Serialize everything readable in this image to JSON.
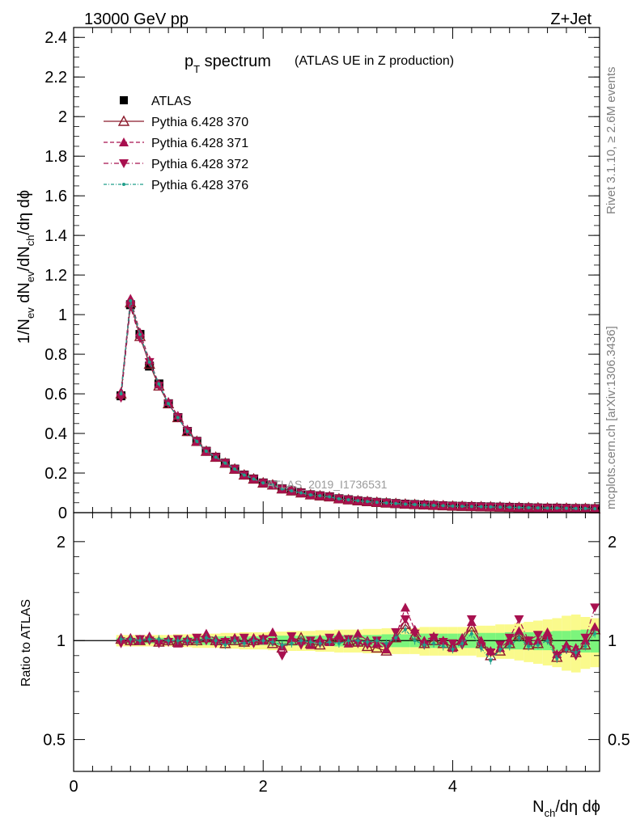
{
  "header": {
    "left": "13000 GeV pp",
    "right": "Z+Jet"
  },
  "plot_title": {
    "main": "p",
    "main_sub": "T",
    "main_rest": " spectrum",
    "paren": "(ATLAS UE in Z production)"
  },
  "side_text": {
    "rivet": "Rivet 3.1.10, ≥ 2.6M events",
    "site": "mcplots.cern.ch [arXiv:1306.3436]"
  },
  "watermark": "ATLAS_2019_I1736531",
  "colors": {
    "data": "#000000",
    "mc370": "#8b1a2b",
    "mc371": "#a8104f",
    "mc372": "#a8104f",
    "mc376": "#1f9e8a",
    "band_inner": "#7cf57c",
    "band_outer": "#fafa8c"
  },
  "chart_data": [
    {
      "type": "line",
      "panel": "main",
      "ylabel": "1/N_ev dN_ev/dN_ch/dη dϕ",
      "ylim": [
        0,
        2.45
      ],
      "yticks": [
        "0",
        "0.2",
        "0.4",
        "0.6",
        "0.8",
        "1",
        "1.2",
        "1.4",
        "1.6",
        "1.8",
        "2",
        "2.2",
        "2.4"
      ],
      "ytick_values": [
        0,
        0.2,
        0.4,
        0.6,
        0.8,
        1,
        1.2,
        1.4,
        1.6,
        1.8,
        2,
        2.2,
        2.4
      ],
      "xlim": [
        0,
        5.55
      ],
      "legend_position": "top-left",
      "x": [
        0.5,
        0.6,
        0.7,
        0.8,
        0.9,
        1.0,
        1.1,
        1.2,
        1.3,
        1.4,
        1.5,
        1.6,
        1.7,
        1.8,
        1.9,
        2.0,
        2.1,
        2.2,
        2.3,
        2.4,
        2.5,
        2.6,
        2.7,
        2.8,
        2.9,
        3.0,
        3.1,
        3.2,
        3.3,
        3.4,
        3.5,
        3.6,
        3.7,
        3.8,
        3.9,
        4.0,
        4.1,
        4.2,
        4.3,
        4.4,
        4.5,
        4.6,
        4.7,
        4.8,
        4.9,
        5.0,
        5.1,
        5.2,
        5.3,
        5.4,
        5.5
      ],
      "series": [
        {
          "name": "ATLAS",
          "marker": "square",
          "values": [
            0.59,
            1.05,
            0.9,
            0.74,
            0.65,
            0.55,
            0.48,
            0.41,
            0.36,
            0.31,
            0.28,
            0.25,
            0.22,
            0.19,
            0.17,
            0.15,
            0.14,
            0.12,
            0.11,
            0.1,
            0.09,
            0.085,
            0.08,
            0.07,
            0.065,
            0.06,
            0.056,
            0.052,
            0.049,
            0.046,
            0.043,
            0.041,
            0.039,
            0.037,
            0.035,
            0.033,
            0.032,
            0.031,
            0.03,
            0.029,
            0.028,
            0.027,
            0.026,
            0.025,
            0.024,
            0.023,
            0.023,
            0.022,
            0.021,
            0.021,
            0.02
          ]
        },
        {
          "name": "Pythia 6.428 370",
          "marker": "open-triangle",
          "values": [
            0.6,
            1.06,
            0.89,
            0.75,
            0.64,
            0.55,
            0.48,
            0.41,
            0.36,
            0.31,
            0.28,
            0.25,
            0.22,
            0.19,
            0.17,
            0.15,
            0.14,
            0.12,
            0.11,
            0.1,
            0.09,
            0.085,
            0.08,
            0.07,
            0.065,
            0.06,
            0.056,
            0.052,
            0.049,
            0.046,
            0.043,
            0.041,
            0.039,
            0.037,
            0.035,
            0.033,
            0.032,
            0.031,
            0.03,
            0.029,
            0.028,
            0.027,
            0.026,
            0.025,
            0.024,
            0.023,
            0.023,
            0.022,
            0.021,
            0.021,
            0.02
          ]
        },
        {
          "name": "Pythia 6.428 371",
          "marker": "triangle-up",
          "values": [
            0.61,
            1.08,
            0.91,
            0.77,
            0.65,
            0.56,
            0.49,
            0.42,
            0.36,
            0.31,
            0.28,
            0.25,
            0.22,
            0.19,
            0.17,
            0.15,
            0.14,
            0.12,
            0.11,
            0.1,
            0.09,
            0.085,
            0.08,
            0.07,
            0.065,
            0.06,
            0.056,
            0.052,
            0.049,
            0.046,
            0.043,
            0.041,
            0.039,
            0.037,
            0.035,
            0.033,
            0.032,
            0.031,
            0.03,
            0.029,
            0.028,
            0.027,
            0.026,
            0.025,
            0.024,
            0.023,
            0.023,
            0.022,
            0.021,
            0.021,
            0.02
          ]
        },
        {
          "name": "Pythia 6.428 372",
          "marker": "triangle-down",
          "values": [
            0.58,
            1.04,
            0.88,
            0.76,
            0.64,
            0.55,
            0.48,
            0.41,
            0.36,
            0.31,
            0.28,
            0.25,
            0.22,
            0.19,
            0.17,
            0.15,
            0.14,
            0.12,
            0.11,
            0.1,
            0.09,
            0.085,
            0.08,
            0.07,
            0.065,
            0.06,
            0.056,
            0.052,
            0.049,
            0.046,
            0.043,
            0.041,
            0.039,
            0.037,
            0.035,
            0.033,
            0.032,
            0.031,
            0.03,
            0.029,
            0.028,
            0.027,
            0.026,
            0.025,
            0.024,
            0.023,
            0.023,
            0.022,
            0.021,
            0.021,
            0.02
          ]
        },
        {
          "name": "Pythia 6.428 376",
          "marker": "dot",
          "values": [
            0.6,
            1.07,
            0.9,
            0.76,
            0.65,
            0.55,
            0.48,
            0.41,
            0.36,
            0.31,
            0.28,
            0.25,
            0.22,
            0.19,
            0.17,
            0.15,
            0.14,
            0.12,
            0.11,
            0.1,
            0.09,
            0.085,
            0.08,
            0.07,
            0.065,
            0.06,
            0.056,
            0.052,
            0.049,
            0.046,
            0.043,
            0.041,
            0.039,
            0.037,
            0.035,
            0.033,
            0.032,
            0.031,
            0.03,
            0.029,
            0.028,
            0.027,
            0.026,
            0.025,
            0.024,
            0.023,
            0.023,
            0.022,
            0.021,
            0.021,
            0.02
          ]
        }
      ]
    },
    {
      "type": "line",
      "panel": "ratio",
      "ylabel": "Ratio to ATLAS",
      "xlabel": "N_ch/dη dϕ",
      "yscale": "log",
      "ylim": [
        0.4,
        2.45
      ],
      "yticks": [
        "0.5",
        "1",
        "2"
      ],
      "ytick_values": [
        0.5,
        1,
        2
      ],
      "xlim": [
        0,
        5.55
      ],
      "xticks": [
        "0",
        "2",
        "4"
      ],
      "xtick_values": [
        0,
        2,
        4
      ],
      "x": [
        0.5,
        0.6,
        0.7,
        0.8,
        0.9,
        1.0,
        1.1,
        1.2,
        1.3,
        1.4,
        1.5,
        1.6,
        1.7,
        1.8,
        1.9,
        2.0,
        2.1,
        2.2,
        2.3,
        2.4,
        2.5,
        2.6,
        2.7,
        2.8,
        2.9,
        3.0,
        3.1,
        3.2,
        3.3,
        3.4,
        3.5,
        3.6,
        3.7,
        3.8,
        3.9,
        4.0,
        4.1,
        4.2,
        4.3,
        4.4,
        4.5,
        4.6,
        4.7,
        4.8,
        4.9,
        5.0,
        5.1,
        5.2,
        5.3,
        5.4,
        5.5
      ],
      "band_inner_halfwidth": [
        0.02,
        0.02,
        0.02,
        0.02,
        0.02,
        0.02,
        0.02,
        0.025,
        0.025,
        0.03,
        0.03,
        0.03,
        0.03,
        0.03,
        0.03,
        0.03,
        0.035,
        0.035,
        0.035,
        0.035,
        0.035,
        0.035,
        0.035,
        0.04,
        0.04,
        0.04,
        0.04,
        0.04,
        0.045,
        0.045,
        0.045,
        0.045,
        0.05,
        0.05,
        0.05,
        0.05,
        0.05,
        0.05,
        0.055,
        0.055,
        0.055,
        0.06,
        0.06,
        0.06,
        0.065,
        0.065,
        0.07,
        0.07,
        0.075,
        0.08,
        0.08
      ],
      "band_outer_halfwidth": [
        0.04,
        0.04,
        0.04,
        0.04,
        0.04,
        0.04,
        0.045,
        0.045,
        0.05,
        0.05,
        0.05,
        0.055,
        0.055,
        0.06,
        0.06,
        0.06,
        0.065,
        0.065,
        0.07,
        0.07,
        0.07,
        0.075,
        0.075,
        0.08,
        0.08,
        0.08,
        0.085,
        0.085,
        0.09,
        0.09,
        0.09,
        0.09,
        0.1,
        0.1,
        0.1,
        0.1,
        0.1,
        0.1,
        0.11,
        0.11,
        0.12,
        0.12,
        0.13,
        0.14,
        0.15,
        0.16,
        0.17,
        0.19,
        0.2,
        0.18,
        0.17
      ],
      "series": [
        {
          "name": "Pythia 6.428 370",
          "values": [
            1.01,
            1.0,
            1.0,
            1.02,
            0.99,
            1.0,
            0.99,
            1.0,
            1.0,
            1.02,
            1.0,
            0.98,
            1.0,
            0.99,
            1.0,
            1.01,
            0.98,
            0.95,
            1.0,
            1.02,
            0.98,
            0.97,
            1.0,
            1.02,
            1.0,
            0.99,
            0.96,
            0.95,
            0.93,
            1.02,
            1.12,
            1.04,
            0.98,
            1.0,
            0.98,
            0.96,
            1.0,
            1.1,
            0.98,
            0.9,
            0.93,
            0.98,
            1.04,
            0.97,
            0.98,
            1.04,
            0.89,
            0.95,
            0.92,
            0.97,
            1.08
          ]
        },
        {
          "name": "Pythia 6.428 371",
          "values": [
            1.02,
            1.02,
            1.0,
            1.03,
            1.0,
            1.01,
            0.98,
            1.01,
            1.01,
            1.05,
            1.01,
            1.0,
            1.02,
            1.0,
            1.02,
            1.0,
            1.06,
            0.96,
            1.02,
            1.0,
            0.97,
            1.01,
            0.99,
            1.04,
            0.98,
            1.05,
            1.0,
            0.98,
            0.94,
            1.03,
            1.26,
            1.08,
            1.0,
            1.03,
            1.0,
            0.95,
            1.02,
            1.14,
            1.0,
            0.93,
            0.95,
            1.0,
            1.07,
            1.0,
            1.0,
            1.06,
            0.91,
            0.97,
            0.95,
            1.0,
            1.1
          ]
        },
        {
          "name": "Pythia 6.428 372",
          "values": [
            0.98,
            0.99,
            1.01,
            1.0,
            0.98,
            0.99,
            1.01,
            0.99,
            1.02,
            1.0,
            0.98,
            0.99,
            1.0,
            1.02,
            0.98,
            1.01,
            0.99,
            0.9,
            1.03,
            0.97,
            1.0,
            0.98,
            1.02,
            1.0,
            1.01,
            0.98,
            0.97,
            1.0,
            0.96,
            1.06,
            1.16,
            1.05,
            0.97,
            1.02,
            0.99,
            0.98,
            0.97,
            1.16,
            0.96,
            0.92,
            0.97,
            1.02,
            1.16,
            1.0,
            1.04,
            1.01,
            0.9,
            0.94,
            0.9,
            1.02,
            1.26
          ]
        },
        {
          "name": "Pythia 6.428 376",
          "values": [
            1.01,
            1.01,
            1.0,
            1.01,
            1.01,
            1.0,
            1.0,
            1.0,
            0.99,
            1.02,
            1.0,
            0.97,
            1.0,
            0.98,
            1.0,
            1.0,
            0.99,
            0.97,
            0.98,
            1.0,
            0.99,
            0.98,
            0.99,
            0.98,
            1.0,
            1.0,
            0.99,
            1.0,
            0.98,
            1.02,
            1.08,
            1.0,
            0.97,
            0.98,
            0.96,
            0.94,
            0.98,
            1.05,
            0.95,
            0.87,
            0.94,
            0.96,
            1.02,
            0.96,
            0.97,
            1.0,
            0.88,
            0.94,
            0.92,
            0.96,
            1.05
          ]
        }
      ]
    }
  ]
}
